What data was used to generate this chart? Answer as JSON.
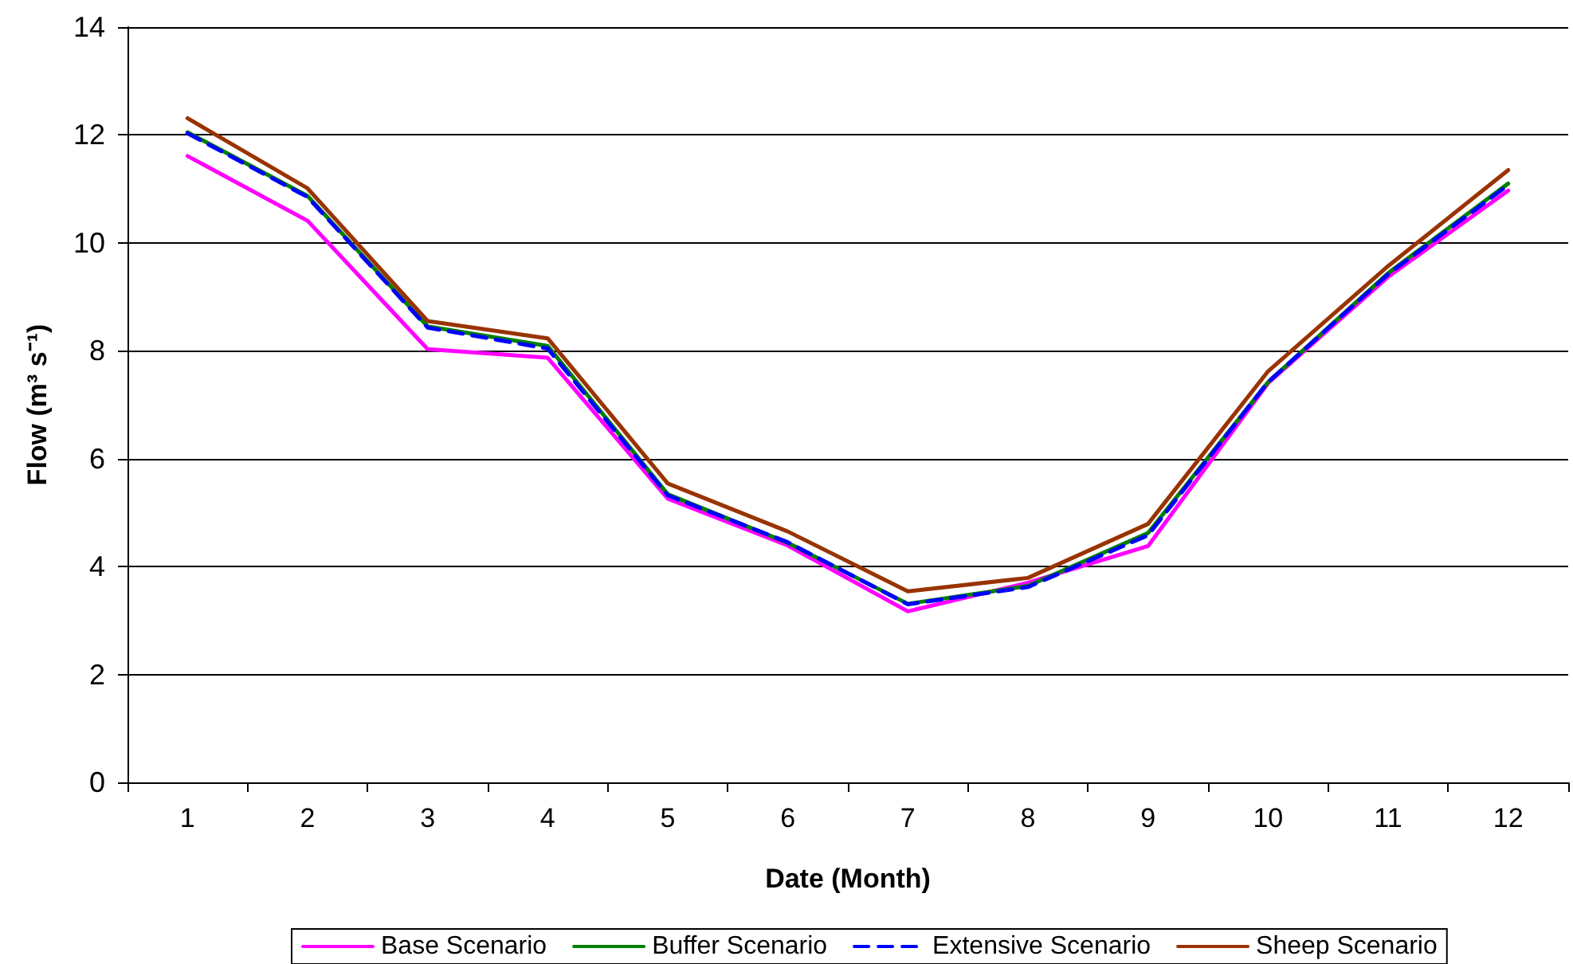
{
  "chart_data": {
    "type": "line",
    "xlabel": "Date (Month)",
    "ylabel": "Flow (m³ s⁻¹)",
    "categories": [
      "1",
      "2",
      "3",
      "4",
      "5",
      "6",
      "7",
      "8",
      "9",
      "10",
      "11",
      "12"
    ],
    "series": [
      {
        "name": "Base Scenario",
        "color": "#ff00ff",
        "values": [
          11.61,
          10.41,
          8.03,
          7.87,
          5.26,
          4.39,
          3.17,
          3.7,
          4.38,
          7.4,
          9.37,
          10.97
        ]
      },
      {
        "name": "Buffer Scenario",
        "color": "#008000",
        "values": [
          12.05,
          10.87,
          8.45,
          8.09,
          5.34,
          4.44,
          3.31,
          3.64,
          4.62,
          7.42,
          9.44,
          11.1
        ]
      },
      {
        "name": "Extensive Scenario",
        "color": "#0000ff",
        "line_style": "dashed",
        "values": [
          12.03,
          10.85,
          8.43,
          8.04,
          5.32,
          4.45,
          3.3,
          3.62,
          4.58,
          7.42,
          9.42,
          11.07
        ]
      },
      {
        "name": "Sheep Scenario",
        "color": "#993300",
        "values": [
          12.31,
          11.01,
          8.55,
          8.23,
          5.54,
          4.65,
          3.54,
          3.79,
          4.79,
          7.62,
          9.57,
          11.35
        ]
      }
    ],
    "ylim": [
      0,
      14
    ],
    "yticks": [
      0,
      2,
      4,
      6,
      8,
      10,
      12,
      14
    ],
    "grid": "y",
    "legend": "bottom",
    "marker": "none",
    "line_style": "solid"
  }
}
